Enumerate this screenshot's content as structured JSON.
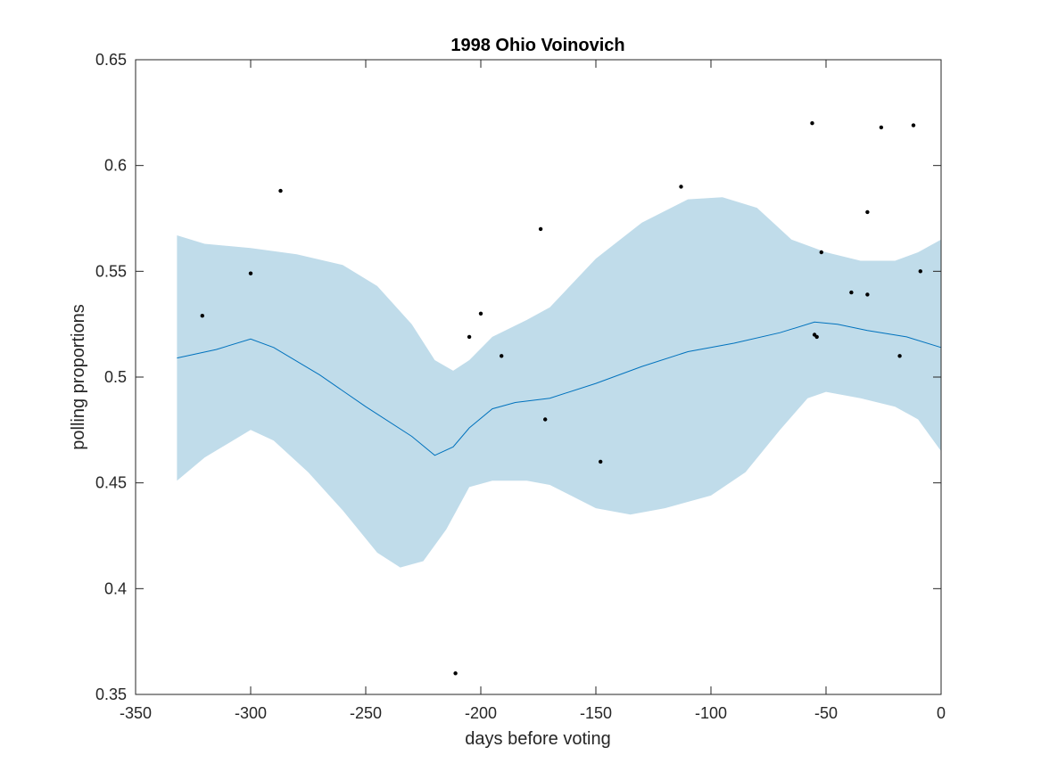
{
  "chart_data": {
    "type": "scatter",
    "title": "1998 Ohio Voinovich",
    "xlabel": "days before voting",
    "ylabel": "polling proportions",
    "xlim": [
      -350,
      0
    ],
    "ylim": [
      0.35,
      0.65
    ],
    "xticks": [
      -350,
      -300,
      -250,
      -200,
      -150,
      -100,
      -50,
      0
    ],
    "xtick_labels": [
      "-350",
      "-300",
      "-250",
      "-200",
      "-150",
      "-100",
      "-50",
      "0"
    ],
    "yticks": [
      0.35,
      0.4,
      0.45,
      0.5,
      0.55,
      0.6,
      0.65
    ],
    "ytick_labels": [
      "0.35",
      "0.4",
      "0.45",
      "0.5",
      "0.55",
      "0.6",
      "0.65"
    ],
    "grid": false,
    "colors": {
      "band": "#c0dcea",
      "trend": "#0072bd",
      "points": "#000000"
    },
    "points": [
      [
        -321,
        0.529
      ],
      [
        -300,
        0.549
      ],
      [
        -287,
        0.588
      ],
      [
        -211,
        0.36
      ],
      [
        -205,
        0.519
      ],
      [
        -200,
        0.53
      ],
      [
        -191,
        0.51
      ],
      [
        -174,
        0.57
      ],
      [
        -172,
        0.48
      ],
      [
        -148,
        0.46
      ],
      [
        -113,
        0.59
      ],
      [
        -56,
        0.62
      ],
      [
        -55,
        0.52
      ],
      [
        -54,
        0.519
      ],
      [
        -52,
        0.559
      ],
      [
        -39,
        0.54
      ],
      [
        -32,
        0.578
      ],
      [
        -32,
        0.539
      ],
      [
        -26,
        0.618
      ],
      [
        -18,
        0.51
      ],
      [
        -12,
        0.619
      ],
      [
        -9,
        0.55
      ]
    ],
    "trend": [
      [
        -332,
        0.509
      ],
      [
        -315,
        0.513
      ],
      [
        -300,
        0.518
      ],
      [
        -290,
        0.514
      ],
      [
        -270,
        0.501
      ],
      [
        -250,
        0.486
      ],
      [
        -230,
        0.472
      ],
      [
        -220,
        0.463
      ],
      [
        -212,
        0.467
      ],
      [
        -205,
        0.476
      ],
      [
        -195,
        0.485
      ],
      [
        -185,
        0.488
      ],
      [
        -170,
        0.49
      ],
      [
        -150,
        0.497
      ],
      [
        -130,
        0.505
      ],
      [
        -110,
        0.512
      ],
      [
        -90,
        0.516
      ],
      [
        -70,
        0.521
      ],
      [
        -55,
        0.526
      ],
      [
        -45,
        0.525
      ],
      [
        -32,
        0.522
      ],
      [
        -15,
        0.519
      ],
      [
        0,
        0.514
      ]
    ],
    "band_upper": [
      [
        -332,
        0.567
      ],
      [
        -320,
        0.563
      ],
      [
        -300,
        0.561
      ],
      [
        -280,
        0.558
      ],
      [
        -260,
        0.553
      ],
      [
        -245,
        0.543
      ],
      [
        -230,
        0.525
      ],
      [
        -220,
        0.508
      ],
      [
        -212,
        0.503
      ],
      [
        -205,
        0.508
      ],
      [
        -195,
        0.519
      ],
      [
        -180,
        0.527
      ],
      [
        -170,
        0.533
      ],
      [
        -150,
        0.556
      ],
      [
        -130,
        0.573
      ],
      [
        -110,
        0.584
      ],
      [
        -95,
        0.585
      ],
      [
        -80,
        0.58
      ],
      [
        -65,
        0.565
      ],
      [
        -50,
        0.559
      ],
      [
        -35,
        0.555
      ],
      [
        -20,
        0.555
      ],
      [
        -10,
        0.559
      ],
      [
        0,
        0.565
      ]
    ],
    "band_lower": [
      [
        -332,
        0.451
      ],
      [
        -320,
        0.462
      ],
      [
        -300,
        0.475
      ],
      [
        -290,
        0.47
      ],
      [
        -275,
        0.455
      ],
      [
        -260,
        0.437
      ],
      [
        -245,
        0.417
      ],
      [
        -235,
        0.41
      ],
      [
        -225,
        0.413
      ],
      [
        -215,
        0.428
      ],
      [
        -205,
        0.448
      ],
      [
        -195,
        0.451
      ],
      [
        -180,
        0.451
      ],
      [
        -170,
        0.449
      ],
      [
        -150,
        0.438
      ],
      [
        -135,
        0.435
      ],
      [
        -120,
        0.438
      ],
      [
        -100,
        0.444
      ],
      [
        -85,
        0.455
      ],
      [
        -70,
        0.475
      ],
      [
        -58,
        0.49
      ],
      [
        -50,
        0.493
      ],
      [
        -35,
        0.49
      ],
      [
        -20,
        0.486
      ],
      [
        -10,
        0.48
      ],
      [
        0,
        0.465
      ]
    ]
  }
}
